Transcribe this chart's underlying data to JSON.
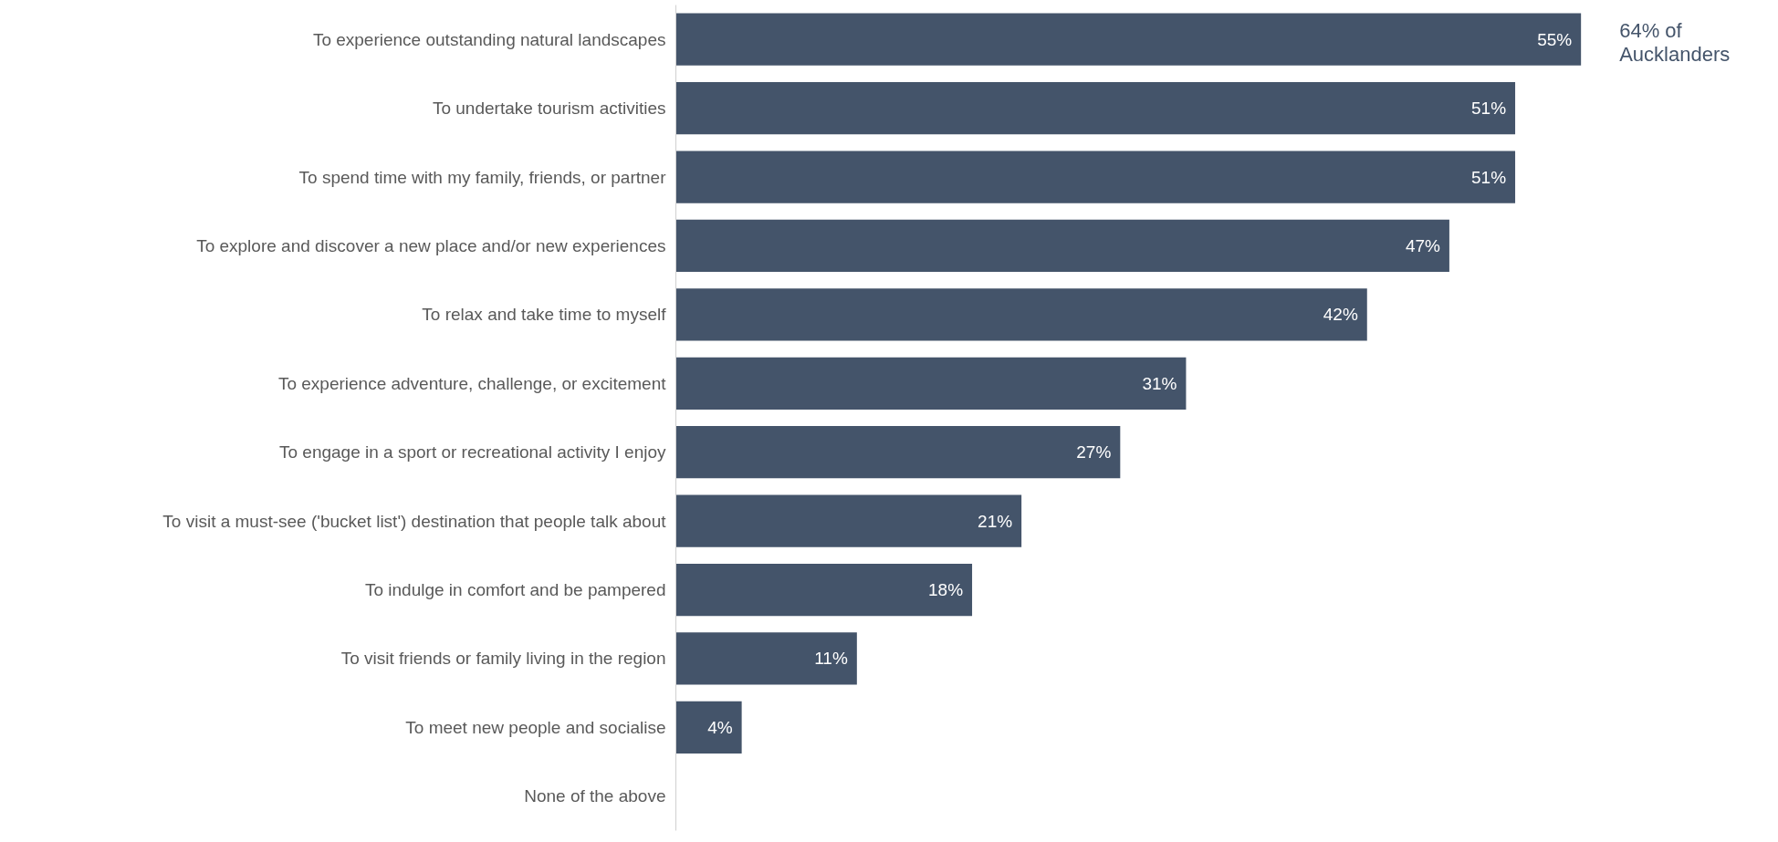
{
  "chart_data": {
    "type": "bar",
    "orientation": "horizontal",
    "categories": [
      "To experience outstanding natural landscapes",
      "To undertake tourism activities",
      "To spend time with my family, friends, or partner",
      "To explore and discover a new place and/or new experiences",
      "To relax and take time to myself",
      "To experience adventure, challenge, or excitement",
      "To engage in a sport or recreational activity I enjoy",
      "To visit a must-see ('bucket list') destination that people talk about",
      "To indulge in comfort and be pampered",
      "To visit friends or family living in the region",
      "To meet new people and socialise",
      "None of the above"
    ],
    "values": [
      55,
      51,
      51,
      47,
      42,
      31,
      27,
      21,
      18,
      11,
      4,
      null
    ],
    "color": "#44546a",
    "data_labels": true,
    "value_labels": [
      "55%",
      "51%",
      "51%",
      "47%",
      "42%",
      "31%",
      "27%",
      "21%",
      "18%",
      "11%",
      "4%",
      null
    ],
    "annotations": [
      {
        "text": "64% of Aucklanders",
        "x": 55,
        "y": "To experience outstanding natural landscapes"
      }
    ],
    "grid": false
  }
}
